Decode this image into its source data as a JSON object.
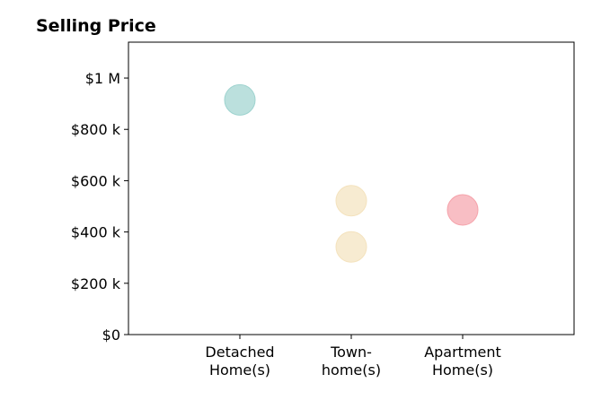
{
  "chart_data": {
    "type": "scatter",
    "title": "Selling Price",
    "xlabel": "",
    "ylabel": "",
    "categories": [
      [
        "Detached",
        "Home(s)"
      ],
      [
        "Town-",
        "home(s)"
      ],
      [
        "Apartment",
        "Home(s)"
      ]
    ],
    "xlim": [
      -1,
      3
    ],
    "ylim": [
      0,
      1140000
    ],
    "yticks": [
      0,
      200000,
      400000,
      600000,
      800000,
      1000000
    ],
    "ytick_labels": [
      "$0",
      "$200 k",
      "$400 k",
      "$600 k",
      "$800 k",
      "$1 M"
    ],
    "grid": false,
    "points": [
      {
        "category": 0,
        "value": 915000,
        "color": "#9ed3cf"
      },
      {
        "category": 1,
        "value": 522000,
        "color": "#f4e2bd"
      },
      {
        "category": 1,
        "value": 342000,
        "color": "#f4e2bd"
      },
      {
        "category": 2,
        "value": 486000,
        "color": "#f5a3ab"
      }
    ]
  }
}
